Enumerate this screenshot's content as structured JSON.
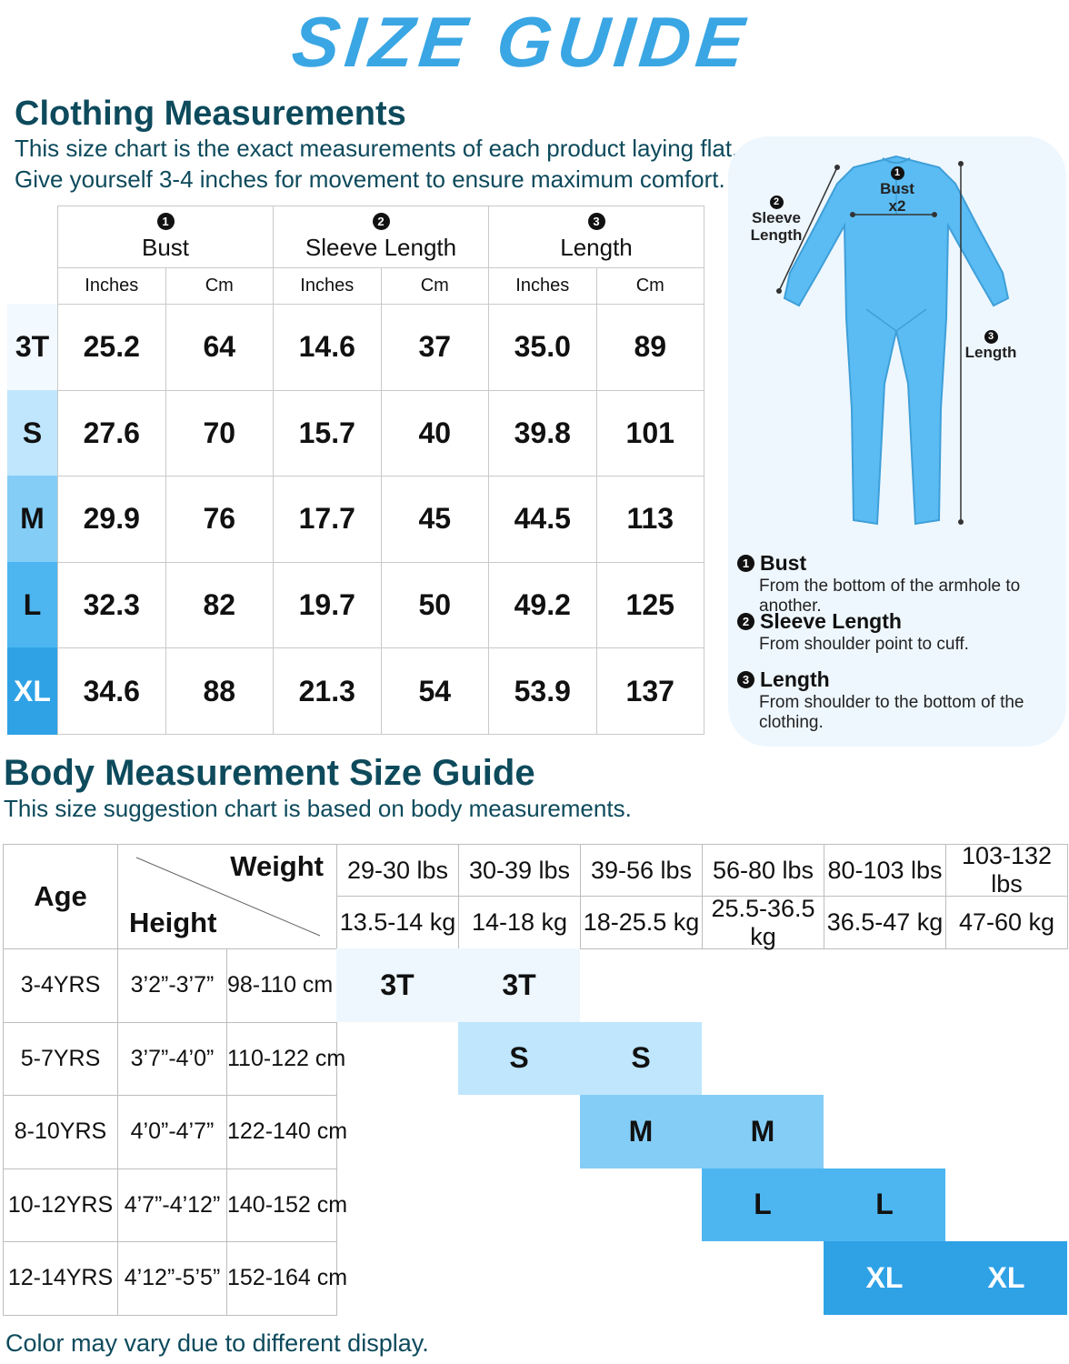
{
  "title": "SIZE GUIDE",
  "clothing": {
    "heading": "Clothing Measurements",
    "desc_line1": "This size chart is the exact measurements of each product laying flat.",
    "desc_line2": "Give yourself 3-4 inches for movement to ensure maximum comfort.",
    "groups": [
      {
        "num": "1",
        "label": "Bust"
      },
      {
        "num": "2",
        "label": "Sleeve Length"
      },
      {
        "num": "3",
        "label": "Length"
      }
    ],
    "units": [
      "Inches",
      "Cm",
      "Inches",
      "Cm",
      "Inches",
      "Cm"
    ],
    "rows": [
      {
        "size": "3T",
        "color": "#f2f9ff",
        "text_color": "#111111",
        "values": [
          "25.2",
          "64",
          "14.6",
          "37",
          "35.0",
          "89"
        ]
      },
      {
        "size": "S",
        "color": "#bfe6fd",
        "text_color": "#111111",
        "values": [
          "27.6",
          "70",
          "15.7",
          "40",
          "39.8",
          "101"
        ]
      },
      {
        "size": "M",
        "color": "#84cdf6",
        "text_color": "#111111",
        "values": [
          "29.9",
          "76",
          "17.7",
          "45",
          "44.5",
          "113"
        ]
      },
      {
        "size": "L",
        "color": "#4db6f0",
        "text_color": "#111111",
        "values": [
          "32.3",
          "82",
          "19.7",
          "50",
          "49.2",
          "125"
        ]
      },
      {
        "size": "XL",
        "color": "#2fa2e6",
        "text_color": "#ffffff",
        "values": [
          "34.6",
          "88",
          "21.3",
          "54",
          "53.9",
          "137"
        ]
      }
    ]
  },
  "diagram": {
    "garment_color": "#5bbcf3",
    "bust_num": "1",
    "bust_label": "Bust",
    "bust_mult": "x2",
    "sleeve_num": "2",
    "sleeve_label_1": "Sleeve",
    "sleeve_label_2": "Length",
    "length_num": "3",
    "length_label": "Length",
    "legend": [
      {
        "num": "1",
        "title": "Bust",
        "desc": "From the bottom of the armhole to another."
      },
      {
        "num": "2",
        "title": "Sleeve Length",
        "desc": "From shoulder point to cuff."
      },
      {
        "num": "3",
        "title": "Length",
        "desc": "From shoulder to the bottom of the clothing."
      }
    ]
  },
  "body": {
    "heading": "Body Measurement Size Guide",
    "desc": "This size suggestion chart is based on body measurements.",
    "age_label": "Age",
    "weight_label": "Weight",
    "height_label": "Height",
    "weights_lbs": [
      "29-30 lbs",
      "30-39 lbs",
      "39-56 lbs",
      "56-80 lbs",
      "80-103 lbs",
      "103-132 lbs"
    ],
    "weights_kg": [
      "13.5-14 kg",
      "14-18 kg",
      "18-25.5 kg",
      "25.5-36.5 kg",
      "36.5-47 kg",
      "47-60 kg"
    ],
    "rows": [
      {
        "age": "3-4YRS",
        "height_ft": "3’2”-3’7”",
        "height_cm": "98-110 cm",
        "size": "3T",
        "start": 0,
        "color": "#eef7fe",
        "text_color": "#111111"
      },
      {
        "age": "5-7YRS",
        "height_ft": "3’7”-4’0”",
        "height_cm": "110-122 cm",
        "size": "S",
        "start": 1,
        "color": "#bfe6fd",
        "text_color": "#111111"
      },
      {
        "age": "8-10YRS",
        "height_ft": "4’0”-4’7”",
        "height_cm": "122-140 cm",
        "size": "M",
        "start": 2,
        "color": "#84cdf6",
        "text_color": "#111111"
      },
      {
        "age": "10-12YRS",
        "height_ft": "4’7”-4’12”",
        "height_cm": "140-152 cm",
        "size": "L",
        "start": 3,
        "color": "#4db6f0",
        "text_color": "#111111"
      },
      {
        "age": "12-14YRS",
        "height_ft": "4’12”-5’5”",
        "height_cm": "152-164 cm",
        "size": "XL",
        "start": 4,
        "color": "#2fa2e6",
        "text_color": "#ffffff"
      }
    ]
  },
  "footer": "Color may vary due to different display."
}
